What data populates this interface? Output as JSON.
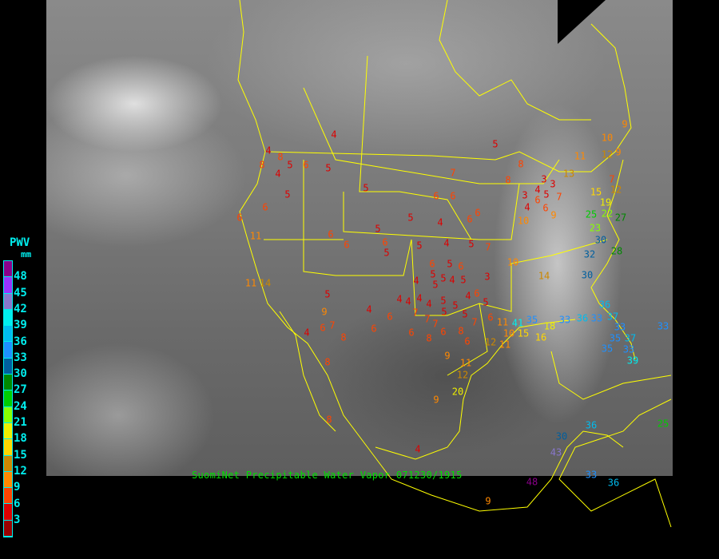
{
  "caption": "SuomiNet Precipitable Water Vapor 071230/1915",
  "legend": {
    "title": "PWV",
    "unit": "mm",
    "labels": [
      "48",
      "45",
      "42",
      "39",
      "36",
      "33",
      "30",
      "27",
      "24",
      "21",
      "18",
      "15",
      "12",
      "9",
      "6",
      "3"
    ],
    "colors": [
      "#8b008b",
      "#9933ff",
      "#8877cc",
      "#00eeee",
      "#00bbee",
      "#1e90ff",
      "#005f9f",
      "#008800",
      "#00cc00",
      "#88ff00",
      "#eeee00",
      "#ffd700",
      "#cc8800",
      "#ff8800",
      "#ff4400",
      "#dd0000",
      "#990000"
    ]
  },
  "map_colors": {
    "borders": "#ffff00"
  },
  "stations": [
    "4",
    "4",
    "8",
    "5",
    "8",
    "4",
    "6",
    "5",
    "5",
    "6",
    "5",
    "6",
    "11",
    "11",
    "14",
    "5",
    "7",
    "6",
    "6",
    "6",
    "6",
    "5",
    "4",
    "5",
    "6",
    "5",
    "6",
    "6",
    "5",
    "4",
    "5",
    "7",
    "6",
    "5",
    "6",
    "5",
    "5",
    "4",
    "5",
    "3",
    "4",
    "5",
    "4",
    "4",
    "4",
    "5",
    "5",
    "4",
    "6",
    "5",
    "5",
    "5",
    "5",
    "9",
    "4",
    "4",
    "6",
    "6",
    "7",
    "6",
    "4",
    "8",
    "7",
    "7",
    "7",
    "6",
    "8",
    "6",
    "8",
    "7",
    "6",
    "6",
    "11",
    "10",
    "12",
    "11",
    "9",
    "11",
    "12",
    "8",
    "20",
    "9",
    "8",
    "4",
    "9",
    "10",
    "14",
    "10",
    "9",
    "7",
    "3",
    "4",
    "3",
    "5",
    "6",
    "3",
    "4",
    "6",
    "8",
    "8",
    "11",
    "13",
    "10",
    "9",
    "12",
    "9",
    "7",
    "12",
    "15",
    "19",
    "22",
    "25",
    "23",
    "27",
    "30",
    "32",
    "28",
    "30",
    "35",
    "18",
    "33",
    "36",
    "33",
    "37",
    "33",
    "35",
    "37",
    "33",
    "35",
    "39",
    "33",
    "25",
    "36",
    "30",
    "43",
    "48",
    "33",
    "36",
    "36",
    "41",
    "15",
    "16",
    "23"
  ]
}
